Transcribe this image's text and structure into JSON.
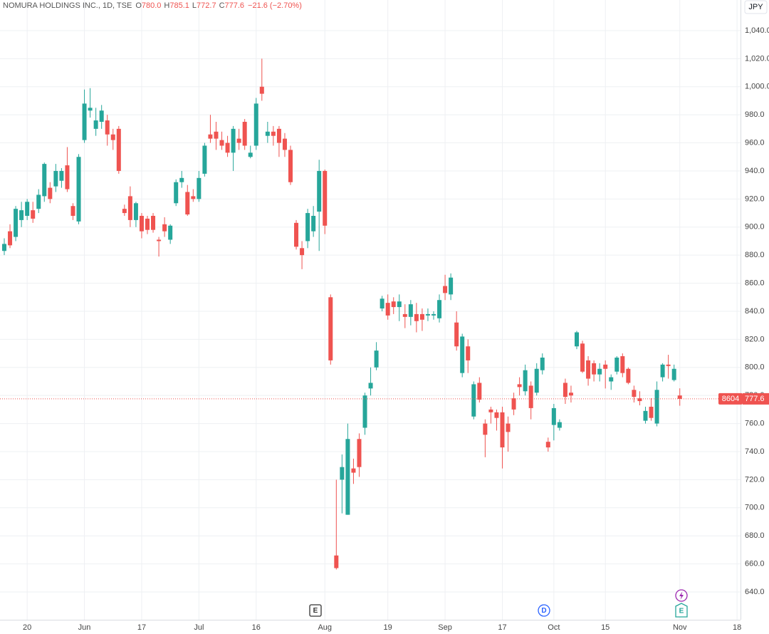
{
  "chart_data": {
    "type": "candlestick",
    "title": "NOMURA HOLDINGS INC., 1D, TSE",
    "ohlc_header": [
      {
        "key": "O",
        "value": "780.0"
      },
      {
        "key": "H",
        "value": "785.1"
      },
      {
        "key": "L",
        "value": "772.7"
      },
      {
        "key": "C",
        "value": "777.6"
      }
    ],
    "change": "−21.6 (−2.70%)",
    "currency": "JPY",
    "symbol_code": "8604",
    "price_label": "777.6",
    "events": [
      "E",
      "D",
      "E"
    ],
    "up_color": "#26a69a",
    "down_color": "#ef5350",
    "grid": true,
    "ylim": [
      620.2,
      1061.8
    ],
    "yticks": [
      {
        "value": 640,
        "label": "640.0"
      },
      {
        "value": 660,
        "label": "660.0"
      },
      {
        "value": 680,
        "label": "680.0"
      },
      {
        "value": 700,
        "label": "700.0"
      },
      {
        "value": 720,
        "label": "720.0"
      },
      {
        "value": 740,
        "label": "740.0"
      },
      {
        "value": 760,
        "label": "760.0"
      },
      {
        "value": 780,
        "label": "780.0"
      },
      {
        "value": 800,
        "label": "800.0"
      },
      {
        "value": 820,
        "label": "820.0"
      },
      {
        "value": 840,
        "label": "840.0"
      },
      {
        "value": 860,
        "label": "860.0"
      },
      {
        "value": 880,
        "label": "880.0"
      },
      {
        "value": 900,
        "label": "900.0"
      },
      {
        "value": 920,
        "label": "920.0"
      },
      {
        "value": 940,
        "label": "940.0"
      },
      {
        "value": 960,
        "label": "960.0"
      },
      {
        "value": 980,
        "label": "980.0"
      },
      {
        "value": 1000,
        "label": "1,000.0"
      },
      {
        "value": 1020,
        "label": "1,020.0"
      },
      {
        "value": 1040,
        "label": "1,040.0"
      }
    ],
    "categories": [
      null,
      null,
      null,
      null,
      "20",
      null,
      null,
      null,
      null,
      null,
      null,
      null,
      null,
      null,
      "Jun",
      null,
      null,
      null,
      null,
      null,
      null,
      null,
      null,
      null,
      "17",
      null,
      null,
      null,
      null,
      null,
      null,
      null,
      null,
      null,
      "Jul",
      null,
      null,
      null,
      null,
      null,
      null,
      null,
      null,
      null,
      "16",
      null,
      null,
      null,
      null,
      null,
      null,
      null,
      null,
      null,
      null,
      null,
      "Aug",
      null,
      null,
      null,
      null,
      null,
      null,
      null,
      null,
      null,
      null,
      "19",
      null,
      null,
      null,
      null,
      null,
      null,
      null,
      null,
      null,
      "Sep",
      null,
      null,
      null,
      null,
      null,
      null,
      null,
      null,
      null,
      "17",
      null,
      null,
      null,
      null,
      null,
      null,
      null,
      null,
      "Oct",
      null,
      null,
      null,
      null,
      null,
      null,
      null,
      null,
      "15",
      null,
      null,
      null,
      null,
      null,
      null,
      null,
      null,
      null,
      null,
      null,
      null,
      "Nov",
      null,
      null,
      null,
      null,
      null,
      null,
      null,
      null,
      null,
      "18"
    ],
    "open": [
      883,
      897,
      893,
      905,
      908,
      912,
      913,
      922,
      928,
      929,
      933,
      944,
      915,
      904,
      962,
      983,
      970,
      975,
      976,
      966,
      970,
      913,
      922,
      905,
      908,
      906,
      908,
      891,
      902,
      891,
      917,
      932,
      925,
      922,
      920,
      938,
      966,
      968,
      962,
      960,
      953,
      963,
      975,
      950,
      958,
      1000,
      965,
      968,
      970,
      963,
      955,
      903,
      885,
      890,
      897,
      911,
      940,
      850,
      666,
      720,
      695,
      728,
      749,
      757,
      785,
      800,
      842,
      846,
      847,
      843,
      838,
      836,
      838,
      838,
      837,
      837,
      835,
      858,
      852,
      832,
      796,
      815,
      765,
      789,
      760,
      770,
      768,
      768,
      760,
      778,
      788,
      783,
      787,
      782,
      798,
      747,
      759,
      757,
      789,
      782,
      815,
      817,
      805,
      803,
      795,
      802,
      790,
      797,
      808,
      799,
      784,
      778,
      762,
      772,
      760,
      793,
      802,
      791,
      780,
      null,
      null,
      null,
      null,
      null,
      null,
      null,
      null,
      null,
      null
    ],
    "high": [
      892,
      902,
      915,
      918,
      920,
      918,
      927,
      946,
      932,
      945,
      942,
      957,
      917,
      952,
      998,
      999,
      985,
      987,
      980,
      970,
      972,
      916,
      929,
      918,
      910,
      908,
      910,
      893,
      907,
      902,
      934,
      940,
      930,
      927,
      940,
      960,
      980,
      975,
      968,
      965,
      972,
      970,
      977,
      958,
      992,
      1020,
      975,
      972,
      972,
      967,
      958,
      905,
      890,
      913,
      915,
      948,
      941,
      852,
      720,
      738,
      760,
      735,
      753,
      782,
      800,
      818,
      851,
      852,
      850,
      852,
      845,
      848,
      846,
      842,
      842,
      840,
      852,
      866,
      867,
      840,
      824,
      820,
      790,
      793,
      763,
      772,
      770,
      772,
      765,
      782,
      793,
      802,
      790,
      803,
      810,
      750,
      774,
      763,
      792,
      787,
      826,
      819,
      808,
      805,
      803,
      805,
      795,
      808,
      810,
      800,
      787,
      783,
      772,
      778,
      790,
      803,
      809,
      802,
      785.1,
      null,
      null,
      null,
      null,
      null,
      null,
      null,
      null,
      null,
      null
    ],
    "low": [
      880,
      885,
      890,
      900,
      905,
      903,
      910,
      918,
      917,
      925,
      928,
      925,
      905,
      902,
      960,
      978,
      965,
      970,
      958,
      955,
      938,
      908,
      900,
      900,
      892,
      895,
      896,
      879,
      893,
      888,
      915,
      928,
      908,
      918,
      918,
      936,
      960,
      955,
      955,
      950,
      940,
      955,
      955,
      949,
      955,
      990,
      960,
      958,
      950,
      950,
      930,
      884,
      870,
      885,
      893,
      883,
      895,
      802,
      656,
      696,
      695,
      717,
      722,
      752,
      780,
      798,
      840,
      834,
      838,
      833,
      828,
      830,
      825,
      826,
      833,
      834,
      832,
      848,
      848,
      812,
      793,
      796,
      763,
      775,
      736,
      760,
      755,
      728,
      740,
      766,
      780,
      780,
      763,
      780,
      795,
      740,
      748,
      755,
      774,
      775,
      813,
      796,
      787,
      790,
      790,
      785,
      784,
      795,
      793,
      788,
      775,
      773,
      760,
      762,
      758,
      790,
      792,
      790,
      772.7,
      null,
      null,
      null,
      null,
      null,
      null,
      null,
      null,
      null,
      null
    ],
    "close": [
      888,
      887,
      913,
      912,
      918,
      906,
      923,
      945,
      920,
      940,
      940,
      927,
      908,
      950,
      988,
      985,
      976,
      983,
      966,
      962,
      940,
      910,
      905,
      917,
      897,
      898,
      898,
      890,
      897,
      901,
      932,
      935,
      909,
      920,
      935,
      958,
      963,
      963,
      958,
      953,
      970,
      960,
      958,
      953,
      988,
      995,
      968,
      965,
      960,
      955,
      932,
      886,
      880,
      910,
      908,
      940,
      901,
      805,
      657,
      729,
      749,
      725,
      729,
      780,
      789,
      812,
      849,
      837,
      843,
      847,
      836,
      845,
      833,
      834,
      838,
      838,
      848,
      853,
      864,
      815,
      822,
      805,
      788,
      777,
      752,
      768,
      764,
      743,
      754,
      770,
      786,
      798,
      771,
      799,
      807,
      743,
      771,
      761,
      779,
      780,
      825,
      797,
      792,
      795,
      799,
      799,
      793,
      807,
      796,
      789,
      779,
      776,
      769,
      764,
      784,
      802,
      801,
      799,
      777.6,
      null,
      null,
      null,
      null,
      null,
      null,
      null,
      null,
      null,
      null
    ]
  }
}
